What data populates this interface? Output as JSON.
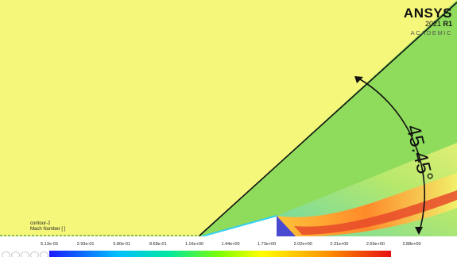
{
  "branding": {
    "name": "ANSYS",
    "version": "2021",
    "release": "R1",
    "edition": "ACADEMIC"
  },
  "annotation": {
    "angle_label": "45.45°"
  },
  "contour": {
    "name": "contour-2",
    "quantity": "Mach Number [ ]"
  },
  "legend": {
    "ticks": [
      "5.13e-03",
      "2.93e-01",
      "5.80e-01",
      "8.68e-01",
      "1.16e+00",
      "1.44e+00",
      "1.73e+00",
      "2.02e+00",
      "2.31e+00",
      "2.59e+00",
      "2.88e+00"
    ]
  },
  "colors": {
    "freestream": "#f4f77a",
    "post_shock": "#8edb5a",
    "high_mach": "#e83a2a",
    "wall": "#1a1aff"
  },
  "icons": [
    "rotate-icon",
    "pan-icon",
    "zoom-icon",
    "fit-icon",
    "select-icon"
  ]
}
